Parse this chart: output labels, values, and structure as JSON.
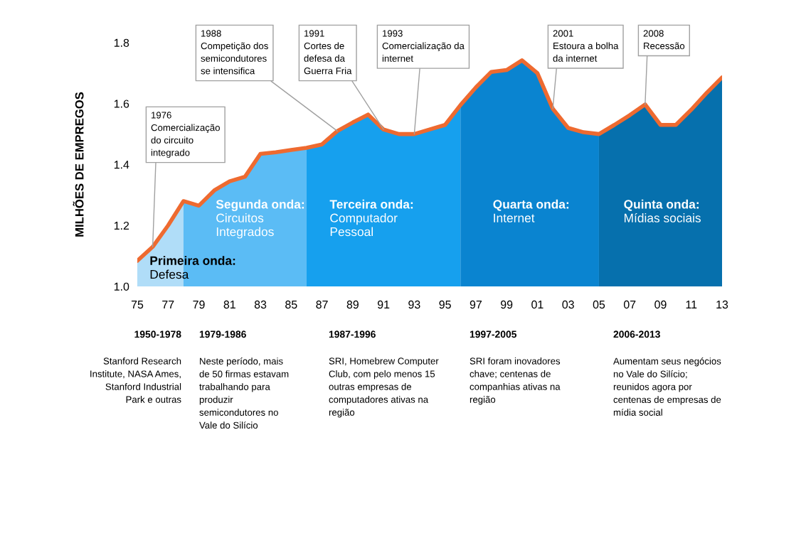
{
  "chart_data": {
    "type": "area",
    "ylabel": "MILHÕES DE EMPREGOS",
    "xlim": [
      1975,
      2013
    ],
    "xticks": [
      {
        "value": 1975,
        "label": "75"
      },
      {
        "value": 1977,
        "label": "77"
      },
      {
        "value": 1979,
        "label": "79"
      },
      {
        "value": 1981,
        "label": "81"
      },
      {
        "value": 1983,
        "label": "83"
      },
      {
        "value": 1985,
        "label": "85"
      },
      {
        "value": 1987,
        "label": "87"
      },
      {
        "value": 1989,
        "label": "89"
      },
      {
        "value": 1991,
        "label": "91"
      },
      {
        "value": 1993,
        "label": "93"
      },
      {
        "value": 1995,
        "label": "95"
      },
      {
        "value": 1997,
        "label": "97"
      },
      {
        "value": 1999,
        "label": "99"
      },
      {
        "value": 2001,
        "label": "01"
      },
      {
        "value": 2003,
        "label": "03"
      },
      {
        "value": 2005,
        "label": "05"
      },
      {
        "value": 2007,
        "label": "07"
      },
      {
        "value": 2009,
        "label": "09"
      },
      {
        "value": 2011,
        "label": "11"
      },
      {
        "value": 2013,
        "label": "13"
      }
    ],
    "ylim": [
      1.0,
      1.8
    ],
    "yticks": [
      {
        "value": 1.0,
        "label": "1.0"
      },
      {
        "value": 1.2,
        "label": "1.2"
      },
      {
        "value": 1.4,
        "label": "1.4"
      },
      {
        "value": 1.6,
        "label": "1.6"
      },
      {
        "value": 1.8,
        "label": "1.8"
      }
    ],
    "grid": false,
    "series": [
      {
        "type": "area",
        "name": "Primeira onda:\nDefesa",
        "color": "#b0ddf8",
        "x": [
          1975,
          1976,
          1977,
          1978
        ],
        "values": [
          1.084,
          1.13,
          1.2,
          1.28
        ]
      },
      {
        "type": "area",
        "name": "Segunda onda:\nCircuitos\nIntegrados",
        "color": "#5bbcf5",
        "x": [
          1978,
          1979,
          1980,
          1981,
          1982,
          1983,
          1984,
          1985,
          1986
        ],
        "values": [
          1.28,
          1.265,
          1.315,
          1.345,
          1.36,
          1.435,
          1.44,
          1.448,
          1.455
        ]
      },
      {
        "type": "area",
        "name": "Terceira onda:\nComputador\nPessoal",
        "color": "#16a0ee",
        "x": [
          1986,
          1987,
          1988,
          1989,
          1990,
          1991,
          1992,
          1993,
          1994,
          1995,
          1996
        ],
        "values": [
          1.455,
          1.466,
          1.51,
          1.538,
          1.564,
          1.515,
          1.5,
          1.5,
          1.515,
          1.53,
          1.595
        ]
      },
      {
        "type": "area",
        "name": "Quarta onda:\nInternet",
        "color": "#0a84d0",
        "x": [
          1996,
          1997,
          1998,
          1999,
          2000,
          2001,
          2002,
          2003,
          2004,
          2005
        ],
        "values": [
          1.595,
          1.653,
          1.704,
          1.71,
          1.742,
          1.7,
          1.583,
          1.52,
          1.506,
          1.5
        ]
      },
      {
        "type": "area",
        "name": "Quinta onda:\nMídias sociais",
        "color": "#0670ad",
        "x": [
          2005,
          2006,
          2007,
          2008,
          2009,
          2010,
          2011,
          2012,
          2013
        ],
        "values": [
          1.5,
          1.53,
          1.562,
          1.597,
          1.53,
          1.53,
          1.58,
          1.635,
          1.686
        ]
      },
      {
        "type": "line",
        "color": "#ee6a30",
        "x": [
          1975,
          1976,
          1977,
          1978,
          1979,
          1980,
          1981,
          1982,
          1983,
          1984,
          1985,
          1986,
          1987,
          1988,
          1989,
          1990,
          1991,
          1992,
          1993,
          1994,
          1995,
          1996,
          1997,
          1998,
          1999,
          2000,
          2001,
          2002,
          2003,
          2004,
          2005,
          2006,
          2007,
          2008,
          2009,
          2010,
          2011,
          2012,
          2013
        ],
        "values": [
          1.084,
          1.13,
          1.2,
          1.28,
          1.265,
          1.315,
          1.345,
          1.36,
          1.435,
          1.44,
          1.448,
          1.455,
          1.466,
          1.51,
          1.538,
          1.564,
          1.515,
          1.5,
          1.5,
          1.515,
          1.53,
          1.595,
          1.653,
          1.704,
          1.71,
          1.742,
          1.7,
          1.583,
          1.52,
          1.506,
          1.5,
          1.53,
          1.562,
          1.597,
          1.53,
          1.53,
          1.58,
          1.635,
          1.686
        ]
      }
    ],
    "annotations": [
      {
        "text": "1976\nComercialização\ndo circuito\nintegrado",
        "x": 1976,
        "y": 1.13
      },
      {
        "text": "1988\nCompetição dos\nsemicondutores\nse intensifica",
        "x": 1988,
        "y": 1.51
      },
      {
        "text": "1991\nCortes de\ndefesa da\nGuerra Fria",
        "x": 1991,
        "y": 1.515
      },
      {
        "text": "1993\nComercialização da\ninternet",
        "x": 1993,
        "y": 1.5
      },
      {
        "text": "2001\nEstoura a bolha\nda internet",
        "x": 2002,
        "y": 1.583
      },
      {
        "text": "2008\nRecessão",
        "x": 2008,
        "y": 1.597
      },
      "1950-1978\nStanford Research\nInstitute, NASA Ames,\nStanford Industrial\nPark e outras",
      "1979-1986\nNeste período, mais\nde 50 firmas estavam\ntrabalhando para\nproduzir\nsemicondutores no\nVale do Silício",
      "1987-1996\nSRI, Homebrew Computer\nClub, com pelo menos 15\noutras empresas de\ncomputadores ativas na\nregião",
      "1997-2005\nSRI foram inovadores\nchave; centenas de\ncompanhias ativas na\nregião",
      "2006-2013\nAumentam seus negócios\nno Vale do Silício;\nreunidos agora por\ncentenas de empresas de\nmídia social"
    ]
  }
}
